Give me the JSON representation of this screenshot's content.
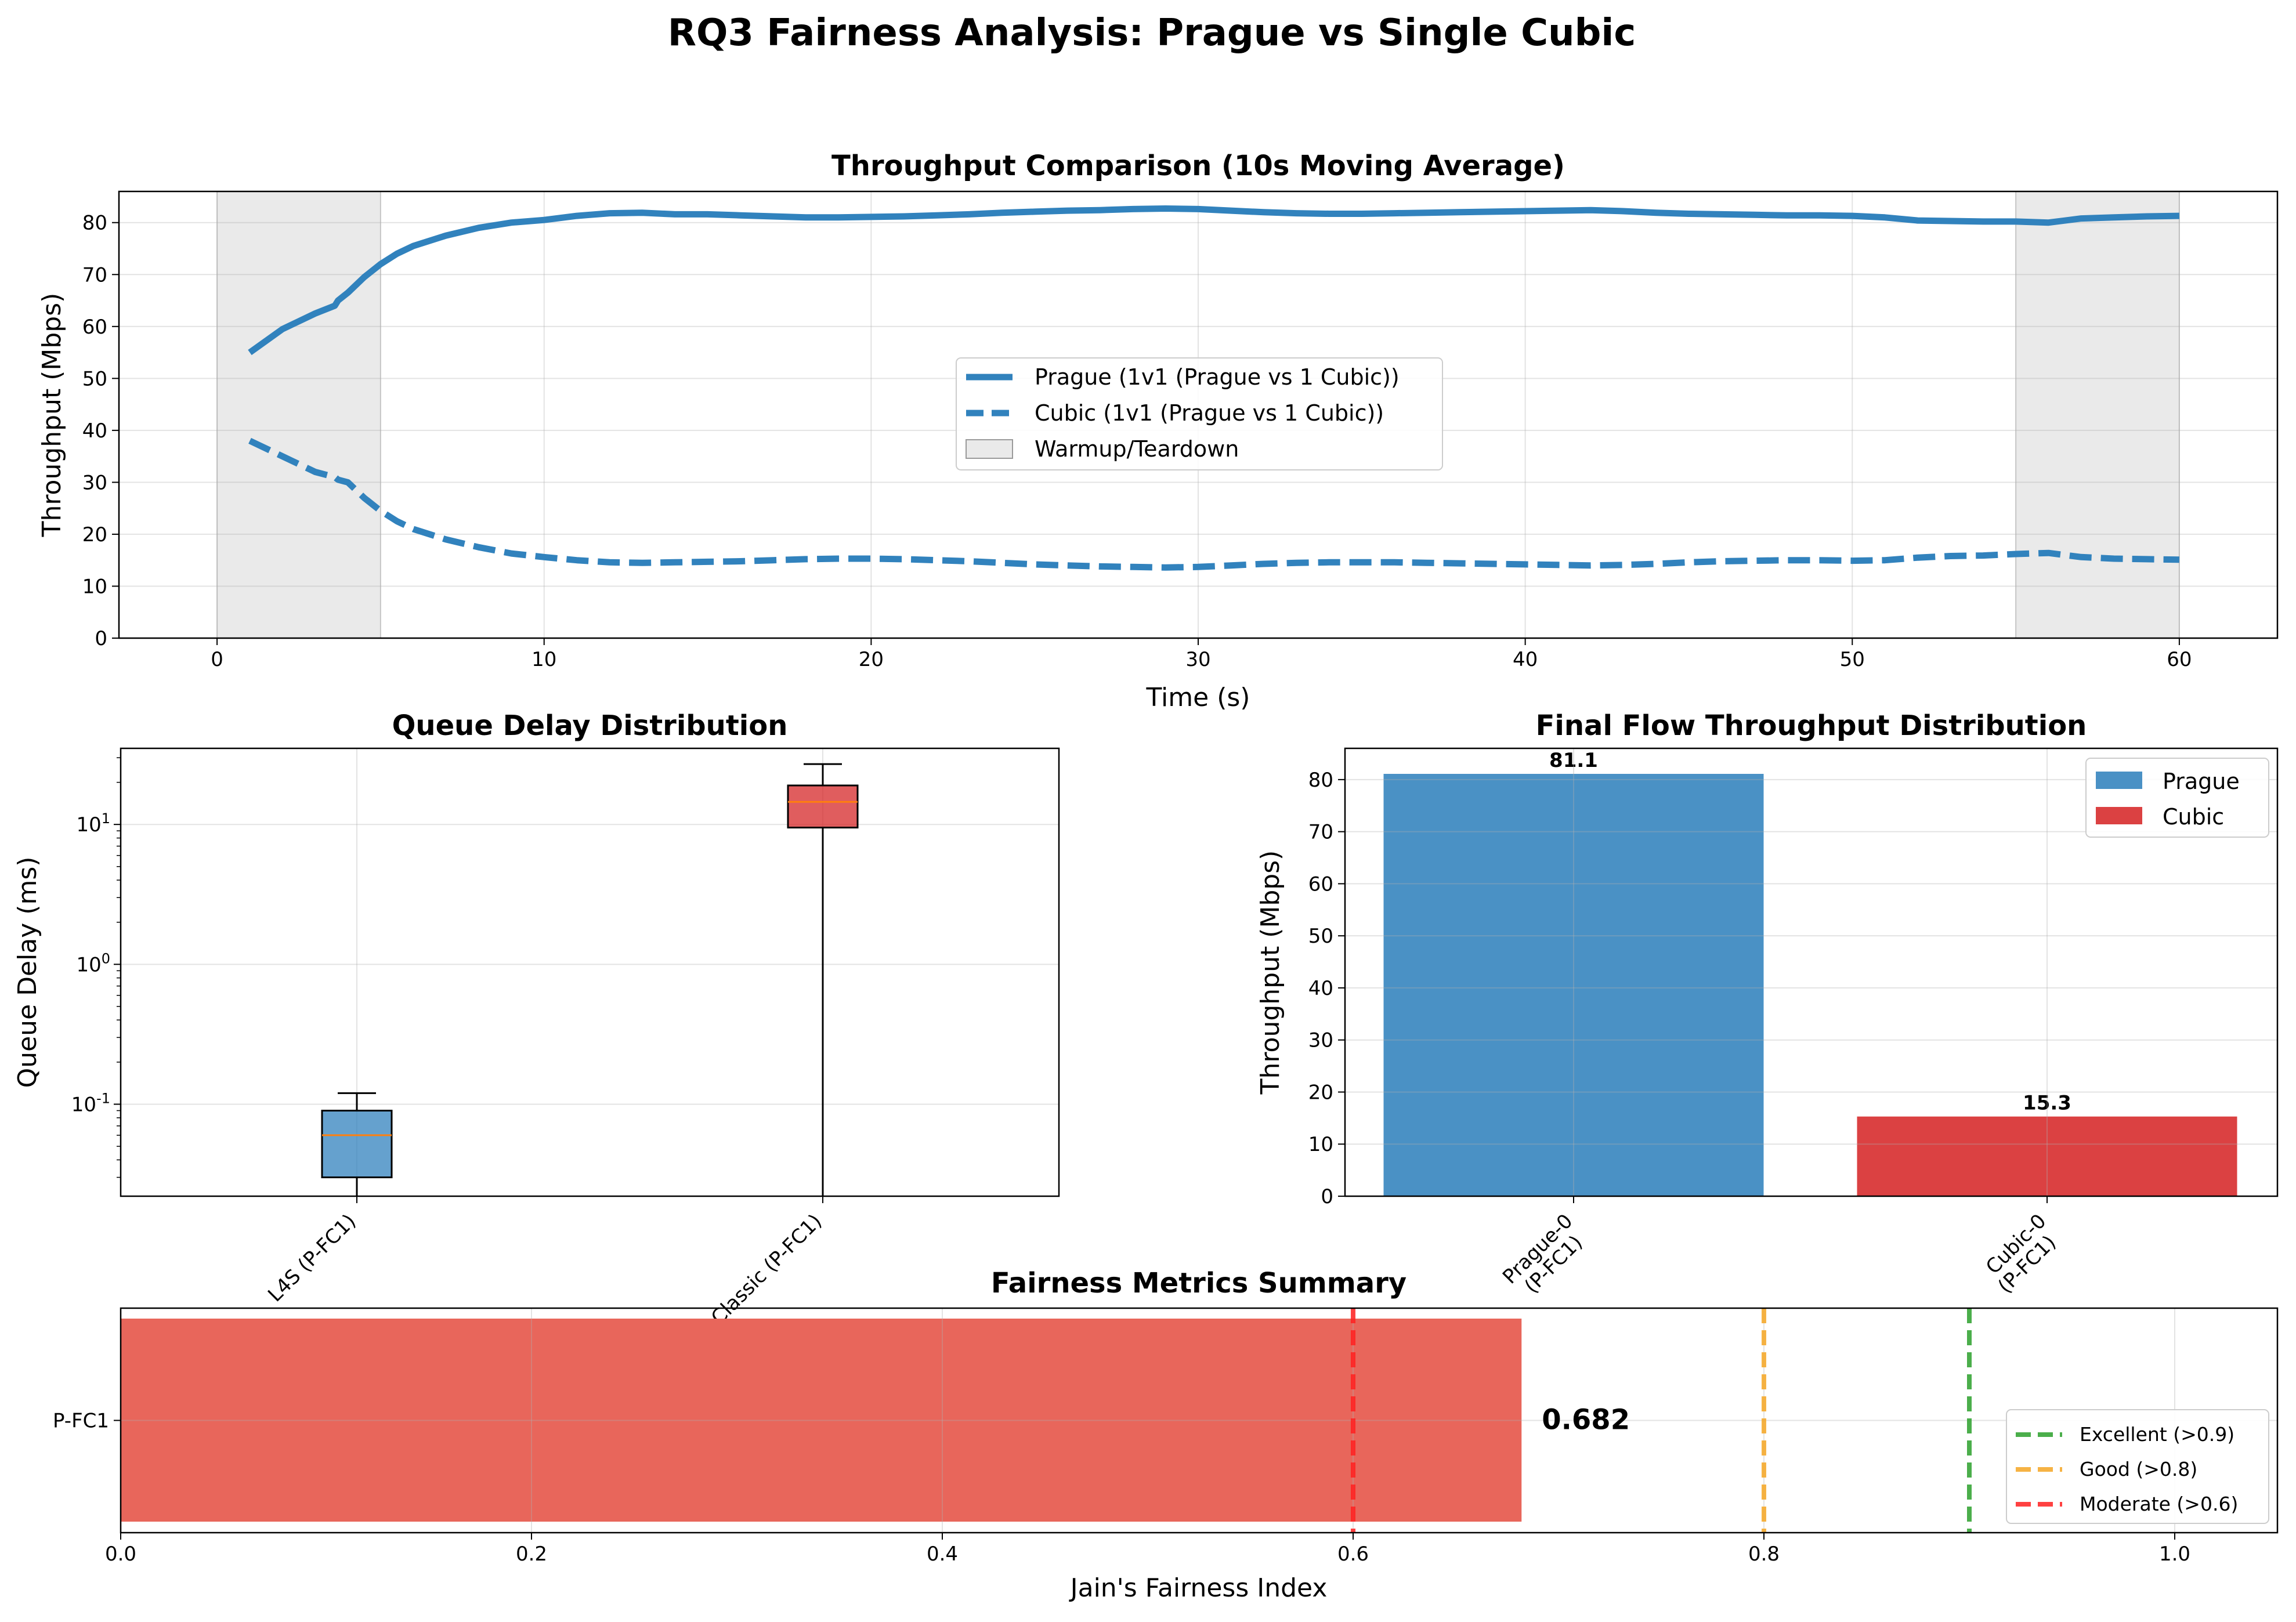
{
  "figure": {
    "suptitle": "RQ3 Fairness Analysis: Prague vs Single Cubic"
  },
  "colors": {
    "prague": "#3182bd",
    "cubic": "#d62728",
    "fairness_bar": "#e8665b",
    "warmup_shade": "#d9d9d9",
    "excellent": "#2ca02c",
    "good": "#f5a623",
    "moderate": "#ff2020",
    "median": "#ff7f0e"
  },
  "chart_data": [
    {
      "id": "throughput",
      "type": "line",
      "title": "Throughput Comparison (10s Moving Average)",
      "xlabel": "Time (s)",
      "ylabel": "Throughput (Mbps)",
      "xlim": [
        -3,
        63
      ],
      "ylim": [
        0,
        86
      ],
      "xticks": [
        0,
        10,
        20,
        30,
        40,
        50,
        60
      ],
      "yticks": [
        0,
        10,
        20,
        30,
        40,
        50,
        60,
        70,
        80
      ],
      "grid": true,
      "legend_position": "center",
      "shaded_regions": [
        {
          "label": "Warmup/Teardown",
          "x": [
            0,
            5
          ]
        },
        {
          "label": "Warmup/Teardown",
          "x": [
            55,
            60
          ]
        }
      ],
      "series": [
        {
          "name": "Prague (1v1 (Prague vs 1 Cubic))",
          "style": "solid",
          "x": [
            1,
            2,
            3,
            3.6,
            3.7,
            4,
            4.5,
            5,
            5.5,
            6,
            7,
            8,
            9,
            10,
            11,
            12,
            13,
            14,
            15,
            16,
            17,
            18,
            19,
            20,
            21,
            22,
            23,
            24,
            25,
            26,
            27,
            28,
            29,
            30,
            31,
            32,
            33,
            34,
            35,
            36,
            37,
            38,
            39,
            40,
            41,
            42,
            43,
            44,
            45,
            46,
            47,
            48,
            49,
            50,
            51,
            52,
            53,
            54,
            55,
            56,
            57,
            58,
            59,
            60
          ],
          "y": [
            55,
            59.5,
            62.5,
            64,
            65,
            66.5,
            69.5,
            72,
            74,
            75.5,
            77.5,
            79,
            80,
            80.5,
            81.3,
            81.8,
            81.9,
            81.6,
            81.6,
            81.4,
            81.2,
            81.0,
            81.0,
            81.1,
            81.2,
            81.4,
            81.6,
            81.9,
            82.1,
            82.3,
            82.4,
            82.6,
            82.7,
            82.6,
            82.3,
            82.0,
            81.8,
            81.7,
            81.7,
            81.8,
            81.9,
            82.0,
            82.1,
            82.2,
            82.3,
            82.4,
            82.2,
            81.9,
            81.7,
            81.6,
            81.5,
            81.4,
            81.4,
            81.3,
            81.0,
            80.4,
            80.3,
            80.2,
            80.2,
            80.0,
            80.8,
            81.0,
            81.2,
            81.3
          ]
        },
        {
          "name": "Cubic (1v1 (Prague vs 1 Cubic))",
          "style": "dashed",
          "x": [
            1,
            2,
            3,
            3.6,
            3.7,
            4,
            4.5,
            5,
            5.5,
            6,
            7,
            8,
            9,
            10,
            11,
            12,
            13,
            14,
            15,
            16,
            17,
            18,
            19,
            20,
            21,
            22,
            23,
            24,
            25,
            26,
            27,
            28,
            29,
            30,
            31,
            32,
            33,
            34,
            35,
            36,
            37,
            38,
            39,
            40,
            41,
            42,
            43,
            44,
            45,
            46,
            47,
            48,
            49,
            50,
            51,
            52,
            53,
            54,
            55,
            56,
            57,
            58,
            59,
            60
          ],
          "y": [
            38,
            35,
            32,
            31,
            30.5,
            30,
            27,
            24.5,
            22.5,
            21,
            19,
            17.5,
            16.3,
            15.6,
            15.0,
            14.6,
            14.5,
            14.6,
            14.7,
            14.8,
            15.0,
            15.2,
            15.3,
            15.3,
            15.2,
            15.0,
            14.8,
            14.5,
            14.2,
            14.0,
            13.8,
            13.7,
            13.6,
            13.7,
            14.0,
            14.3,
            14.5,
            14.6,
            14.6,
            14.6,
            14.5,
            14.4,
            14.3,
            14.2,
            14.1,
            14.0,
            14.1,
            14.3,
            14.6,
            14.8,
            14.9,
            15.0,
            15.0,
            14.9,
            15.0,
            15.5,
            15.8,
            15.9,
            16.2,
            16.4,
            15.6,
            15.3,
            15.2,
            15.1
          ]
        }
      ]
    },
    {
      "id": "queue_delay",
      "type": "box",
      "title": "Queue Delay Distribution",
      "ylabel": "Queue Delay (ms)",
      "yscale": "log",
      "ylim": [
        0.022,
        35
      ],
      "ytick_labels": [
        "10^{-1}",
        "10^{0}",
        "10^{1}"
      ],
      "categories": [
        "L4S (P-FC1)",
        "Classic (P-FC1)"
      ],
      "boxes": [
        {
          "label": "L4S (P-FC1)",
          "whisker_low": 0.022,
          "q1": 0.03,
          "median": 0.06,
          "q3": 0.09,
          "whisker_high": 0.12
        },
        {
          "label": "Classic (P-FC1)",
          "whisker_low": 0.022,
          "q1": 9.5,
          "median": 14.5,
          "q3": 19,
          "whisker_high": 27
        }
      ]
    },
    {
      "id": "final_throughput",
      "type": "bar",
      "title": "Final Flow Throughput Distribution",
      "ylabel": "Throughput (Mbps)",
      "ylim": [
        0,
        86
      ],
      "yticks": [
        0,
        10,
        20,
        30,
        40,
        50,
        60,
        70,
        80
      ],
      "categories": [
        "Prague-0\n(P-FC1)",
        "Cubic-0\n(P-FC1)"
      ],
      "values": [
        81.1,
        15.3
      ],
      "value_labels": [
        "81.1",
        "15.3"
      ],
      "legend": [
        "Prague",
        "Cubic"
      ],
      "legend_position": "top-right"
    },
    {
      "id": "fairness",
      "type": "bar",
      "orientation": "horizontal",
      "title": "Fairness Metrics Summary",
      "xlabel": "Jain's Fairness Index",
      "xlim": [
        0,
        1.05
      ],
      "xticks": [
        "0.0",
        "0.2",
        "0.4",
        "0.6",
        "0.8",
        "1.0"
      ],
      "categories": [
        "P-FC1"
      ],
      "values": [
        0.682
      ],
      "value_labels": [
        "0.682"
      ],
      "thresholds": [
        {
          "label": "Excellent (>0.9)",
          "value": 0.9
        },
        {
          "label": "Good (>0.8)",
          "value": 0.8
        },
        {
          "label": "Moderate (>0.6)",
          "value": 0.6
        }
      ],
      "legend_position": "bottom-right"
    }
  ]
}
